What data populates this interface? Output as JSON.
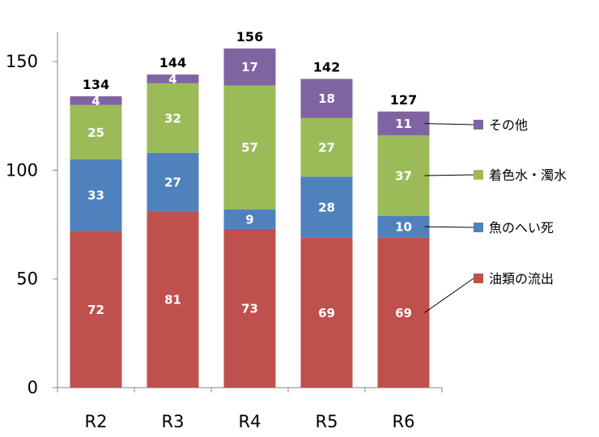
{
  "chart_data": {
    "type": "bar",
    "stacked": true,
    "categories": [
      "R2",
      "R3",
      "R4",
      "R5",
      "R6"
    ],
    "series": [
      {
        "name": "油類の流出",
        "color": "#c0504d",
        "values": [
          72,
          81,
          73,
          69,
          69
        ]
      },
      {
        "name": "魚のへい死",
        "color": "#4f81bd",
        "values": [
          33,
          27,
          9,
          28,
          10
        ]
      },
      {
        "name": "着色水・濁水",
        "color": "#9bbb59",
        "values": [
          25,
          32,
          57,
          27,
          37
        ]
      },
      {
        "name": "その他",
        "color": "#8064a2",
        "values": [
          4,
          4,
          17,
          18,
          11
        ]
      }
    ],
    "totals": [
      134,
      144,
      156,
      142,
      127
    ],
    "ylim": [
      0,
      160
    ],
    "yticks": [
      0,
      50,
      100,
      150
    ],
    "legend": "right",
    "grid": false,
    "title": "",
    "xlabel": "",
    "ylabel": ""
  }
}
